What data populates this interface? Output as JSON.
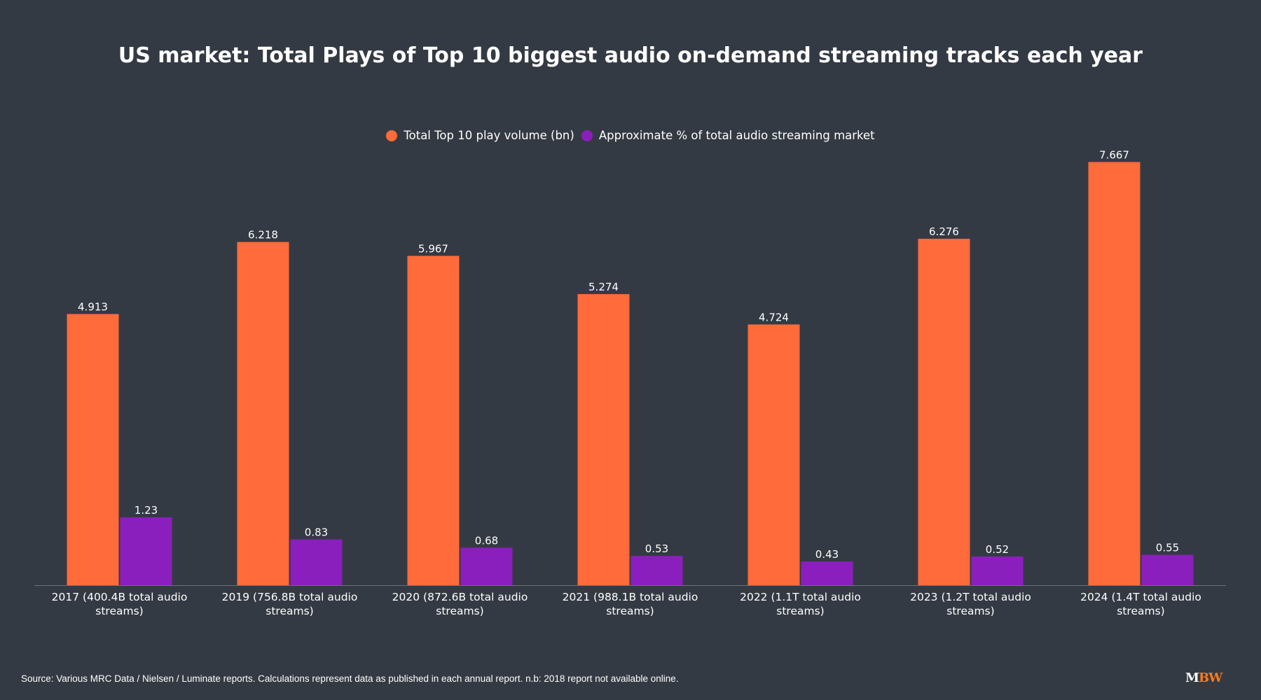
{
  "chart_data": {
    "type": "bar",
    "title": "US market: Total Plays of Top 10 biggest audio on-demand streaming tracks each year",
    "xlabel": "",
    "ylabel": "",
    "ylim": [
      0,
      8.0
    ],
    "grid": false,
    "legend_position": "top-center",
    "categories": [
      "2017 (400.4B total audio streams)",
      "2019 (756.8B total audio streams)",
      "2020 (872.6B total audio streams)",
      "2021 (988.1B total audio streams)",
      "2022 (1.1T total audio streams)",
      "2023 (1.2T total audio streams)",
      "2024 (1.4T total audio streams)"
    ],
    "category_lines": [
      [
        "2017 (400.4B total audio",
        "streams)"
      ],
      [
        "2019 (756.8B total audio",
        "streams)"
      ],
      [
        "2020 (872.6B total audio",
        "streams)"
      ],
      [
        "2021 (988.1B total audio",
        "streams)"
      ],
      [
        "2022 (1.1T total audio",
        "streams)"
      ],
      [
        "2023 (1.2T total audio",
        "streams)"
      ],
      [
        "2024 (1.4T total audio",
        "streams)"
      ]
    ],
    "series": [
      {
        "name": "Total Top 10 play volume (bn)",
        "color": "#ff6b3a",
        "values": [
          4.913,
          6.218,
          5.967,
          5.274,
          4.724,
          6.276,
          7.667
        ],
        "labels": [
          "4.913",
          "6.218",
          "5.967",
          "5.274",
          "4.724",
          "6.276",
          "7.667"
        ]
      },
      {
        "name": "Approximate % of total audio streaming market",
        "color": "#8b1fbd",
        "values": [
          1.23,
          0.83,
          0.68,
          0.53,
          0.43,
          0.52,
          0.55
        ],
        "labels": [
          "1.23",
          "0.83",
          "0.68",
          "0.53",
          "0.43",
          "0.52",
          "0.55"
        ]
      }
    ]
  },
  "footer": {
    "source": "Source: Various MRC Data / Nielsen / Luminate reports. Calculations represent data as published in each annual report. n.b: 2018 report not available online.",
    "logo_m": "M",
    "logo_bw": "BW"
  },
  "colors": {
    "background": "#343a43",
    "axis": "#6b7079",
    "text": "#ffffff"
  }
}
